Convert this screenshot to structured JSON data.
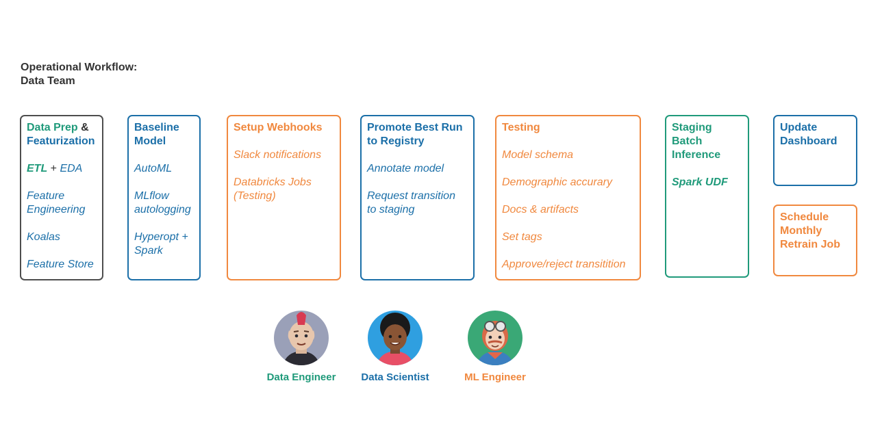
{
  "title": {
    "line1": "Operational Workflow:",
    "line2": "Data Team"
  },
  "colors": {
    "blue": "#1b6fa8",
    "orange": "#f0883e",
    "green": "#1f9a7a",
    "gray": "#4d4d4d"
  },
  "cards": {
    "data_prep": {
      "head_part1": "Data Prep",
      "head_amp": " &",
      "head_part2": "Featurization",
      "etl": "ETL",
      "plus": " + ",
      "eda": "EDA",
      "items": [
        "Feature Engineering",
        "Koalas",
        "Feature Store"
      ]
    },
    "baseline": {
      "head": "Baseline Model",
      "items": [
        "AutoML",
        "MLflow autologging",
        "Hyperopt + Spark"
      ]
    },
    "webhooks": {
      "head": "Setup Webhooks",
      "items": [
        "Slack notifications",
        "Databricks Jobs (Testing)"
      ]
    },
    "promote": {
      "head": "Promote Best Run to Registry",
      "items": [
        "Annotate model",
        "Request transition to staging"
      ]
    },
    "testing": {
      "head": "Testing",
      "items": [
        "Model schema",
        "Demographic accurary",
        "Docs & artifacts",
        "Set tags",
        "Approve/reject transitition"
      ]
    },
    "staging": {
      "head": "Staging Batch Inference",
      "item": "Spark UDF"
    },
    "dashboard": {
      "head": "Update Dashboard"
    },
    "retrain": {
      "head": "Schedule Monthly Retrain Job"
    }
  },
  "personas": [
    {
      "label": "Data Engineer",
      "icon": "data-engineer-avatar-icon"
    },
    {
      "label": "Data Scientist",
      "icon": "data-scientist-avatar-icon"
    },
    {
      "label": "ML Engineer",
      "icon": "ml-engineer-avatar-icon"
    }
  ]
}
